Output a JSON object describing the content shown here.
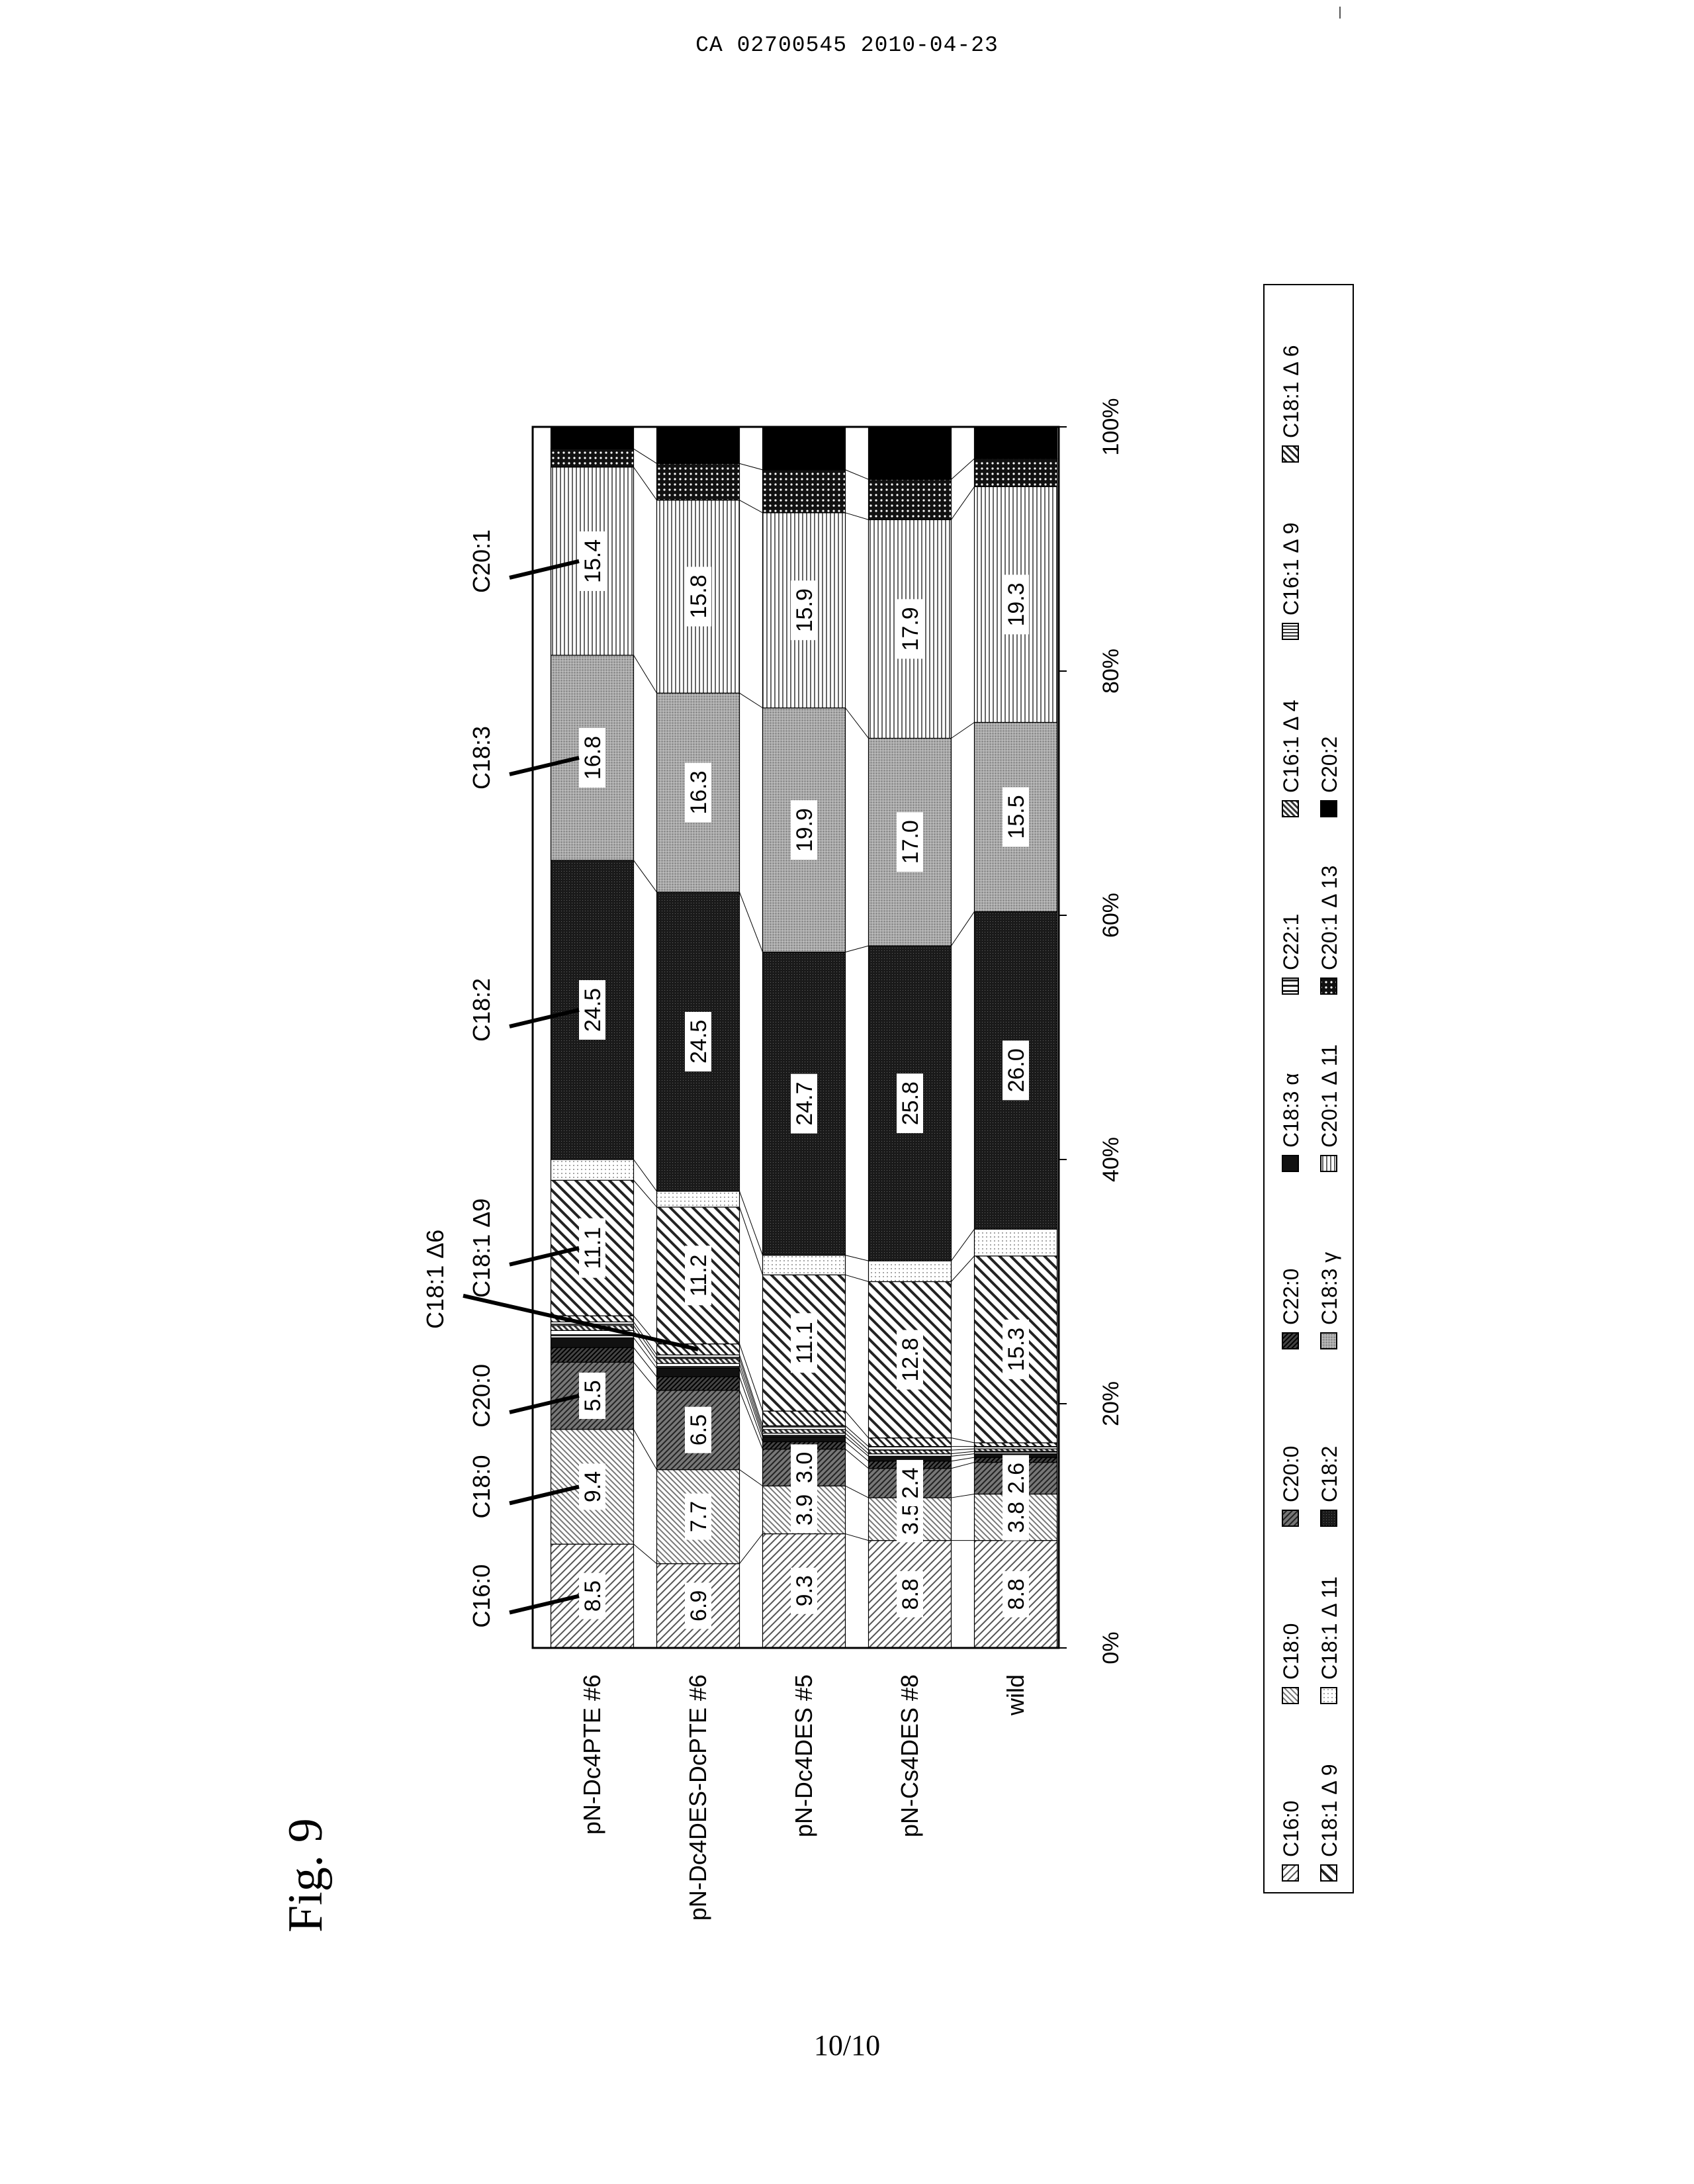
{
  "header": {
    "document_id": "CA 02700545 2010-04-23"
  },
  "figure": {
    "label": "Fig. 9",
    "page": "10/10"
  },
  "colors": {
    "ink": "#000000",
    "paper": "#ffffff"
  },
  "chart_data": {
    "type": "bar",
    "orientation": "horizontal-stacked-100-percent",
    "axis_ticks": [
      "0%",
      "20%",
      "40%",
      "60%",
      "80%",
      "100%"
    ],
    "xlim": [
      0,
      100
    ],
    "categories": [
      "pN-Dc4PTE #6",
      "pN-Dc4DES-DcPTE #6",
      "pN-Dc4DES #5",
      "pN-Cs4DES #8",
      "wild"
    ],
    "series": [
      {
        "name": "C16:0",
        "values": [
          8.5,
          6.9,
          9.3,
          8.8,
          8.8
        ],
        "labels": [
          "8.5",
          "6.9",
          "9.3",
          "8.8",
          "8.8"
        ]
      },
      {
        "name": "C18:0",
        "values": [
          9.4,
          7.7,
          3.9,
          3.5,
          3.8
        ],
        "labels": [
          "9.4",
          "7.7",
          "3.9",
          "3.5",
          "3.8"
        ]
      },
      {
        "name": "C20:0",
        "values": [
          5.5,
          6.5,
          3.0,
          2.4,
          2.6
        ],
        "labels": [
          "5.5",
          "6.5",
          "3.0",
          "2.4",
          "2.6"
        ]
      },
      {
        "name": "C22:0",
        "values": [
          1.2,
          1.1,
          0.6,
          0.6,
          0.4
        ],
        "labels": [
          "",
          "",
          "",
          "",
          ""
        ]
      },
      {
        "name": "C18:3α",
        "values": [
          0.8,
          0.7,
          0.4,
          0.4,
          0.3
        ],
        "labels": [
          "",
          "",
          "",
          "",
          ""
        ]
      },
      {
        "name": "C22:1",
        "values": [
          0.6,
          0.4,
          0.3,
          0.2,
          0.2
        ],
        "labels": [
          "",
          "",
          "",
          "",
          ""
        ]
      },
      {
        "name": "C16:1Δ4",
        "values": [
          0.4,
          0.4,
          0.3,
          0.3,
          0.2
        ],
        "labels": [
          "",
          "",
          "",
          "",
          ""
        ]
      },
      {
        "name": "C16:1Δ9",
        "values": [
          0.3,
          0.3,
          0.3,
          0.3,
          0.2
        ],
        "labels": [
          "",
          "",
          "",
          "",
          ""
        ]
      },
      {
        "name": "C18:1Δ6",
        "values": [
          0.5,
          0.9,
          1.2,
          0.7,
          0.3
        ],
        "labels": [
          "",
          "",
          "",
          "",
          ""
        ]
      },
      {
        "name": "C18:1Δ9",
        "values": [
          11.1,
          11.2,
          11.1,
          12.8,
          15.3
        ],
        "labels": [
          "11.1",
          "11.2",
          "11.1",
          "12.8",
          "15.3"
        ]
      },
      {
        "name": "C18:1Δ11",
        "values": [
          1.7,
          1.3,
          1.6,
          1.7,
          2.2
        ],
        "labels": [
          "",
          "",
          "",
          "",
          ""
        ]
      },
      {
        "name": "C18:2",
        "values": [
          24.5,
          24.5,
          24.7,
          25.8,
          26.0
        ],
        "labels": [
          "24.5",
          "24.5",
          "24.7",
          "25.8",
          "26.0"
        ]
      },
      {
        "name": "C18:3γ",
        "values": [
          16.8,
          16.3,
          19.9,
          17.0,
          15.5
        ],
        "labels": [
          "16.8",
          "16.3",
          "19.9",
          "17.0",
          "15.5"
        ]
      },
      {
        "name": "C20:1Δ11",
        "values": [
          15.4,
          15.8,
          15.9,
          17.9,
          19.3
        ],
        "labels": [
          "15.4",
          "15.8",
          "15.9",
          "17.9",
          "19.3"
        ]
      },
      {
        "name": "C20:1Δ13",
        "values": [
          1.5,
          3.0,
          3.5,
          3.3,
          2.3
        ],
        "labels": [
          "",
          "",
          "",
          "",
          ""
        ]
      },
      {
        "name": "C20:2",
        "values": [
          1.8,
          3.0,
          3.5,
          4.3,
          2.6
        ],
        "labels": [
          "",
          "",
          "",
          "",
          ""
        ]
      }
    ],
    "callouts": [
      {
        "text": "C16:0",
        "series": 0
      },
      {
        "text": "C18:0",
        "series": 1
      },
      {
        "text": "C20:0",
        "series": 2
      },
      {
        "text": "C18:1 Δ6",
        "series": 8
      },
      {
        "text": "C18:1 Δ9",
        "series": 9
      },
      {
        "text": "C18:2",
        "series": 11
      },
      {
        "text": "C18:3",
        "series": 12
      },
      {
        "text": "C20:1",
        "series": 13
      }
    ],
    "legend": {
      "placement": "bottom",
      "entries": [
        "C16:0",
        "C18:0",
        "C20:0",
        "C22:0",
        "C18:3 α",
        "C22:1",
        "C16:1 Δ 4",
        "C16:1 Δ 9",
        "C18:1 Δ 6",
        "C18:1 Δ 9",
        "C18:1 Δ 11",
        "C18:2",
        "C18:3 γ",
        "C20:1 Δ 11",
        "C20:1 Δ 13",
        "C20:2"
      ]
    }
  }
}
